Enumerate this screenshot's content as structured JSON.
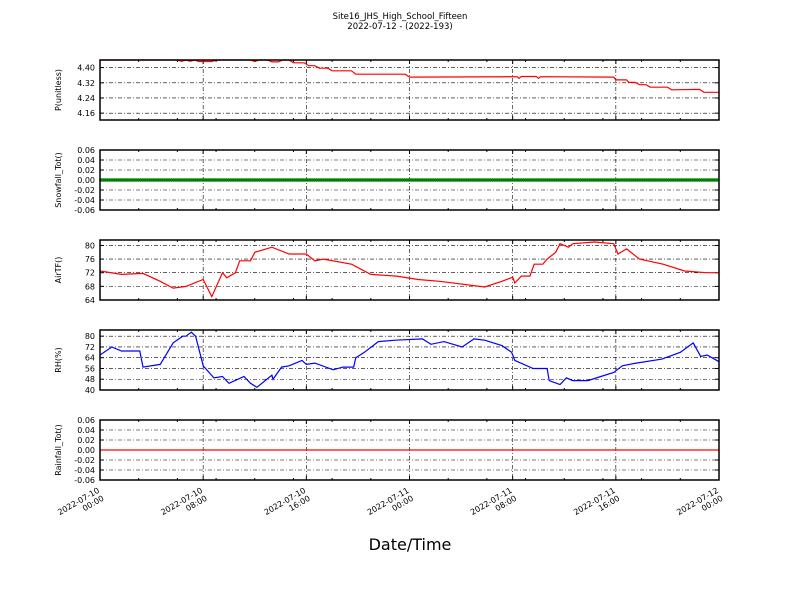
{
  "chart_data": {
    "title": "Site16_JHS_High_School_Fifteen",
    "subtitle": "2022-07-12 - (2022-193)",
    "xlabel": "Date/Time",
    "xlim": [
      "2022-07-10 00:00",
      "2022-07-12 00:00"
    ],
    "x_ticks": [
      "2022-07-10 00:00",
      "2022-07-10 08:00",
      "2022-07-10 16:00",
      "2022-07-11 00:00",
      "2022-07-11 08:00",
      "2022-07-11 16:00",
      "2022-07-12 00:00"
    ],
    "grid": true,
    "panels": [
      {
        "type": "line",
        "ylabel": "P(unitless)",
        "color": "#ff0000",
        "ylim": [
          4.124,
          4.44
        ],
        "yticks": [
          "4.16",
          "4.24",
          "4.32",
          "4.40"
        ],
        "points": [
          [
            "2022-07-10 00:00",
            4.44
          ],
          [
            "2022-07-10 03:00",
            4.44
          ],
          [
            "2022-07-10 06:00",
            4.44
          ],
          [
            "2022-07-10 06:20",
            4.433
          ],
          [
            "2022-07-10 06:40",
            4.44
          ],
          [
            "2022-07-10 07:00",
            4.433
          ],
          [
            "2022-07-10 07:20",
            4.44
          ],
          [
            "2022-07-10 07:40",
            4.432
          ],
          [
            "2022-07-10 08:40",
            4.432
          ],
          [
            "2022-07-10 09:00",
            4.44
          ],
          [
            "2022-07-10 11:40",
            4.44
          ],
          [
            "2022-07-10 12:00",
            4.432
          ],
          [
            "2022-07-10 12:20",
            4.44
          ],
          [
            "2022-07-10 13:00",
            4.44
          ],
          [
            "2022-07-10 13:20",
            4.43
          ],
          [
            "2022-07-10 13:50",
            4.43
          ],
          [
            "2022-07-10 14:10",
            4.44
          ],
          [
            "2022-07-10 14:40",
            4.44
          ],
          [
            "2022-07-10 15:00",
            4.425
          ],
          [
            "2022-07-10 15:50",
            4.425
          ],
          [
            "2022-07-10 16:10",
            4.41
          ],
          [
            "2022-07-10 16:40",
            4.41
          ],
          [
            "2022-07-10 17:00",
            4.397
          ],
          [
            "2022-07-10 17:40",
            4.397
          ],
          [
            "2022-07-10 18:00",
            4.383
          ],
          [
            "2022-07-10 19:30",
            4.383
          ],
          [
            "2022-07-10 19:50",
            4.365
          ],
          [
            "2022-07-10 23:40",
            4.365
          ],
          [
            "2022-07-11 00:00",
            4.35
          ],
          [
            "2022-07-11 08:20",
            4.352
          ],
          [
            "2022-07-11 08:30",
            4.343
          ],
          [
            "2022-07-11 08:40",
            4.353
          ],
          [
            "2022-07-11 09:50",
            4.353
          ],
          [
            "2022-07-11 10:00",
            4.343
          ],
          [
            "2022-07-11 10:10",
            4.352
          ],
          [
            "2022-07-11 15:50",
            4.35
          ],
          [
            "2022-07-11 16:00",
            4.335
          ],
          [
            "2022-07-11 16:50",
            4.335
          ],
          [
            "2022-07-11 17:00",
            4.322
          ],
          [
            "2022-07-11 17:30",
            4.322
          ],
          [
            "2022-07-11 17:50",
            4.31
          ],
          [
            "2022-07-11 18:20",
            4.31
          ],
          [
            "2022-07-11 18:40",
            4.297
          ],
          [
            "2022-07-11 20:00",
            4.297
          ],
          [
            "2022-07-11 20:20",
            4.283
          ],
          [
            "2022-07-11 22:30",
            4.285
          ],
          [
            "2022-07-11 22:50",
            4.27
          ],
          [
            "2022-07-12 00:00",
            4.27
          ]
        ]
      },
      {
        "type": "scatter",
        "ylabel": "Snowfall_Tot()",
        "color": "#008000",
        "ylim": [
          -0.06,
          0.06
        ],
        "yticks": [
          "-0.06",
          "-0.04",
          "-0.02",
          "0.00",
          "0.02",
          "0.04",
          "0.06"
        ],
        "constant_value": 0.0
      },
      {
        "type": "line",
        "ylabel": "AirTF()",
        "color": "#ff0000",
        "ylim": [
          64,
          81.6
        ],
        "yticks": [
          "64",
          "68",
          "72",
          "76",
          "80"
        ],
        "points": [
          [
            "2022-07-10 00:00",
            72.5
          ],
          [
            "2022-07-10 01:40",
            71.5
          ],
          [
            "2022-07-10 03:20",
            71.8
          ],
          [
            "2022-07-10 04:40",
            69.5
          ],
          [
            "2022-07-10 05:40",
            67.5
          ],
          [
            "2022-07-10 06:40",
            68
          ],
          [
            "2022-07-10 08:00",
            70
          ],
          [
            "2022-07-10 08:40",
            65
          ],
          [
            "2022-07-10 09:30",
            72
          ],
          [
            "2022-07-10 09:50",
            70.5
          ],
          [
            "2022-07-10 10:30",
            72
          ],
          [
            "2022-07-10 10:50",
            75.5
          ],
          [
            "2022-07-10 11:40",
            75.5
          ],
          [
            "2022-07-10 12:00",
            78
          ],
          [
            "2022-07-10 13:20",
            79.5
          ],
          [
            "2022-07-10 14:40",
            77.5
          ],
          [
            "2022-07-10 16:00",
            77.5
          ],
          [
            "2022-07-10 16:40",
            75.5
          ],
          [
            "2022-07-10 17:20",
            76
          ],
          [
            "2022-07-10 19:30",
            74.5
          ],
          [
            "2022-07-10 21:00",
            71.5
          ],
          [
            "2022-07-10 23:00",
            71
          ],
          [
            "2022-07-11 00:40",
            70
          ],
          [
            "2022-07-11 02:20",
            69.5
          ],
          [
            "2022-07-11 05:50",
            67.8
          ],
          [
            "2022-07-11 07:10",
            69.5
          ],
          [
            "2022-07-11 08:00",
            70.7
          ],
          [
            "2022-07-11 08:10",
            69
          ],
          [
            "2022-07-11 08:40",
            71
          ],
          [
            "2022-07-11 09:20",
            71
          ],
          [
            "2022-07-11 09:40",
            74.5
          ],
          [
            "2022-07-11 10:20",
            74.5
          ],
          [
            "2022-07-11 10:40",
            76
          ],
          [
            "2022-07-11 11:20",
            78
          ],
          [
            "2022-07-11 11:40",
            80.5
          ],
          [
            "2022-07-11 12:20",
            79.5
          ],
          [
            "2022-07-11 12:40",
            80.5
          ],
          [
            "2022-07-11 14:20",
            81
          ],
          [
            "2022-07-11 15:50",
            80.5
          ],
          [
            "2022-07-11 16:10",
            77.5
          ],
          [
            "2022-07-11 16:50",
            79
          ],
          [
            "2022-07-11 17:50",
            76
          ],
          [
            "2022-07-11 19:40",
            74.5
          ],
          [
            "2022-07-11 21:20",
            72.5
          ],
          [
            "2022-07-11 23:00",
            72
          ],
          [
            "2022-07-12 00:00",
            72
          ]
        ]
      },
      {
        "type": "line",
        "ylabel": "RH(%)",
        "color": "#0000ff",
        "ylim": [
          40,
          84.6
        ],
        "yticks": [
          "40",
          "48",
          "56",
          "64",
          "72",
          "80"
        ],
        "points": [
          [
            "2022-07-10 00:00",
            66
          ],
          [
            "2022-07-10 00:55",
            72
          ],
          [
            "2022-07-10 01:40",
            69
          ],
          [
            "2022-07-10 03:05",
            69
          ],
          [
            "2022-07-10 03:20",
            57
          ],
          [
            "2022-07-10 04:40",
            59
          ],
          [
            "2022-07-10 05:40",
            75
          ],
          [
            "2022-07-10 06:25",
            80
          ],
          [
            "2022-07-10 06:40",
            80
          ],
          [
            "2022-07-10 07:05",
            83
          ],
          [
            "2022-07-10 07:25",
            80
          ],
          [
            "2022-07-10 08:00",
            58
          ],
          [
            "2022-07-10 08:50",
            49
          ],
          [
            "2022-07-10 09:30",
            50
          ],
          [
            "2022-07-10 10:00",
            45
          ],
          [
            "2022-07-10 11:10",
            50
          ],
          [
            "2022-07-10 11:40",
            45
          ],
          [
            "2022-07-10 12:10",
            42
          ],
          [
            "2022-07-10 13:20",
            51
          ],
          [
            "2022-07-10 13:25",
            48
          ],
          [
            "2022-07-10 14:05",
            57
          ],
          [
            "2022-07-10 14:40",
            58
          ],
          [
            "2022-07-10 15:40",
            62
          ],
          [
            "2022-07-10 16:00",
            59
          ],
          [
            "2022-07-10 16:40",
            60
          ],
          [
            "2022-07-10 18:05",
            55
          ],
          [
            "2022-07-10 18:50",
            57
          ],
          [
            "2022-07-10 19:40",
            57
          ],
          [
            "2022-07-10 19:50",
            64
          ],
          [
            "2022-07-10 20:30",
            68
          ],
          [
            "2022-07-10 21:35",
            76
          ],
          [
            "2022-07-10 22:55",
            77
          ],
          [
            "2022-07-11 01:00",
            78
          ],
          [
            "2022-07-11 01:40",
            74
          ],
          [
            "2022-07-11 02:40",
            76
          ],
          [
            "2022-07-11 04:05",
            72
          ],
          [
            "2022-07-11 05:00",
            78
          ],
          [
            "2022-07-11 05:50",
            77
          ],
          [
            "2022-07-11 07:10",
            73
          ],
          [
            "2022-07-11 07:55",
            68
          ],
          [
            "2022-07-11 08:10",
            62
          ],
          [
            "2022-07-11 09:35",
            56
          ],
          [
            "2022-07-11 10:40",
            56
          ],
          [
            "2022-07-11 10:50",
            47
          ],
          [
            "2022-07-11 11:40",
            44
          ],
          [
            "2022-07-11 12:10",
            49
          ],
          [
            "2022-07-11 12:40",
            47
          ],
          [
            "2022-07-11 13:50",
            47
          ],
          [
            "2022-07-11 14:50",
            50
          ],
          [
            "2022-07-11 15:50",
            53
          ],
          [
            "2022-07-11 16:30",
            58
          ],
          [
            "2022-07-11 17:35",
            60
          ],
          [
            "2022-07-11 19:35",
            63
          ],
          [
            "2022-07-11 21:00",
            68
          ],
          [
            "2022-07-11 22:00",
            75
          ],
          [
            "2022-07-11 22:35",
            65
          ],
          [
            "2022-07-11 23:05",
            66
          ],
          [
            "2022-07-12 00:00",
            61
          ]
        ]
      },
      {
        "type": "line",
        "ylabel": "Rainfall_Tot()",
        "color": "#ff0000",
        "ylim": [
          -0.06,
          0.06
        ],
        "yticks": [
          "-0.06",
          "-0.04",
          "-0.02",
          "0.00",
          "0.02",
          "0.04",
          "0.06"
        ],
        "constant_value": 0.0
      }
    ]
  }
}
